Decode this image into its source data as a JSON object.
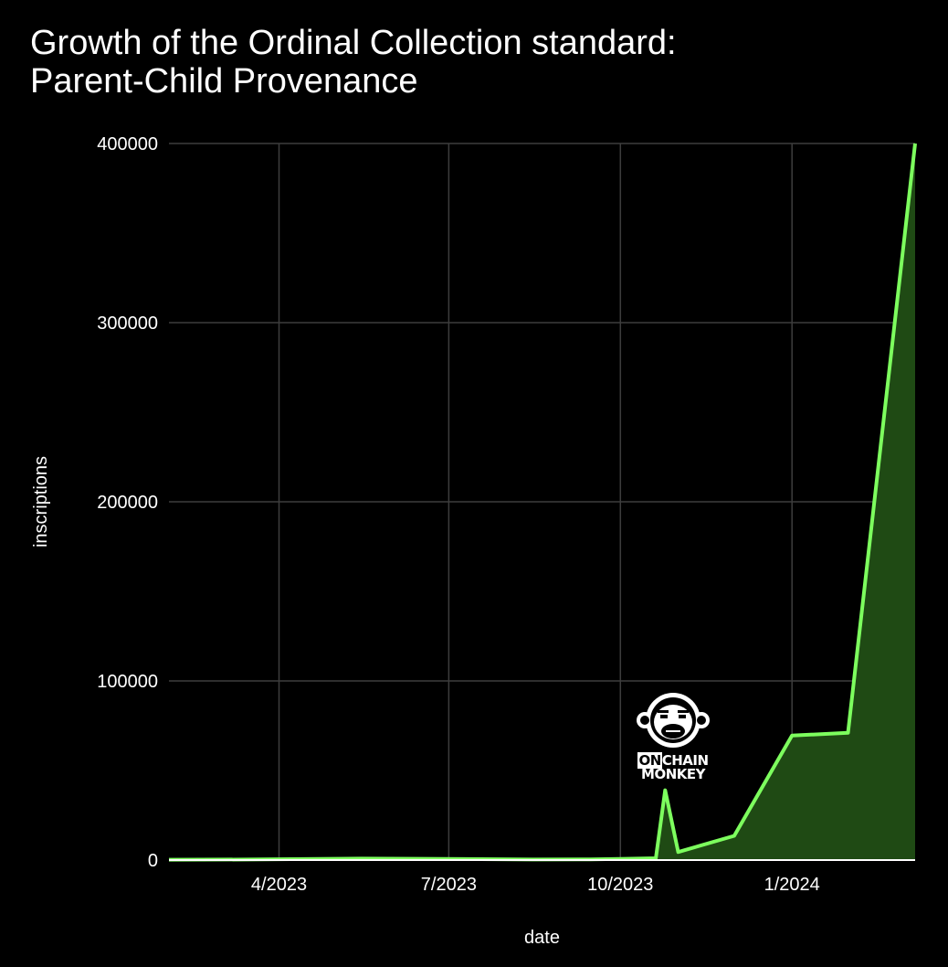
{
  "chart_data": {
    "type": "area",
    "title_lines": [
      "Growth of the Ordinal Collection standard:",
      "Parent-Child Provenance"
    ],
    "xlabel": "date",
    "ylabel": "inscriptions",
    "x_ticks": [
      "4/2023",
      "7/2023",
      "10/2023",
      "1/2024"
    ],
    "x_tick_dates": [
      "2023-04-01",
      "2023-07-01",
      "2023-10-01",
      "2024-01-01"
    ],
    "y_ticks": [
      0,
      100000,
      200000,
      300000,
      400000
    ],
    "xlim": [
      "2023-02-01",
      "2024-03-07"
    ],
    "ylim": [
      0,
      400000
    ],
    "grid": true,
    "series": [
      {
        "color": "#7dff5e",
        "fill": "#1f4a14",
        "x": [
          "2023-02-01",
          "2023-03-15",
          "2023-05-15",
          "2023-06-15",
          "2023-08-15",
          "2023-09-15",
          "2023-10-01",
          "2023-10-20",
          "2023-10-25",
          "2023-11-01",
          "2023-12-01",
          "2024-01-01",
          "2024-01-31",
          "2024-03-07"
        ],
        "y": [
          200,
          300,
          800,
          700,
          300,
          400,
          600,
          1000,
          39000,
          4500,
          13500,
          69500,
          71000,
          400000
        ]
      }
    ]
  },
  "logo": {
    "name": "onchain-monkey",
    "text_on": "ON",
    "text_chain": "CHAIN",
    "text_monkey": "MONKEY"
  }
}
